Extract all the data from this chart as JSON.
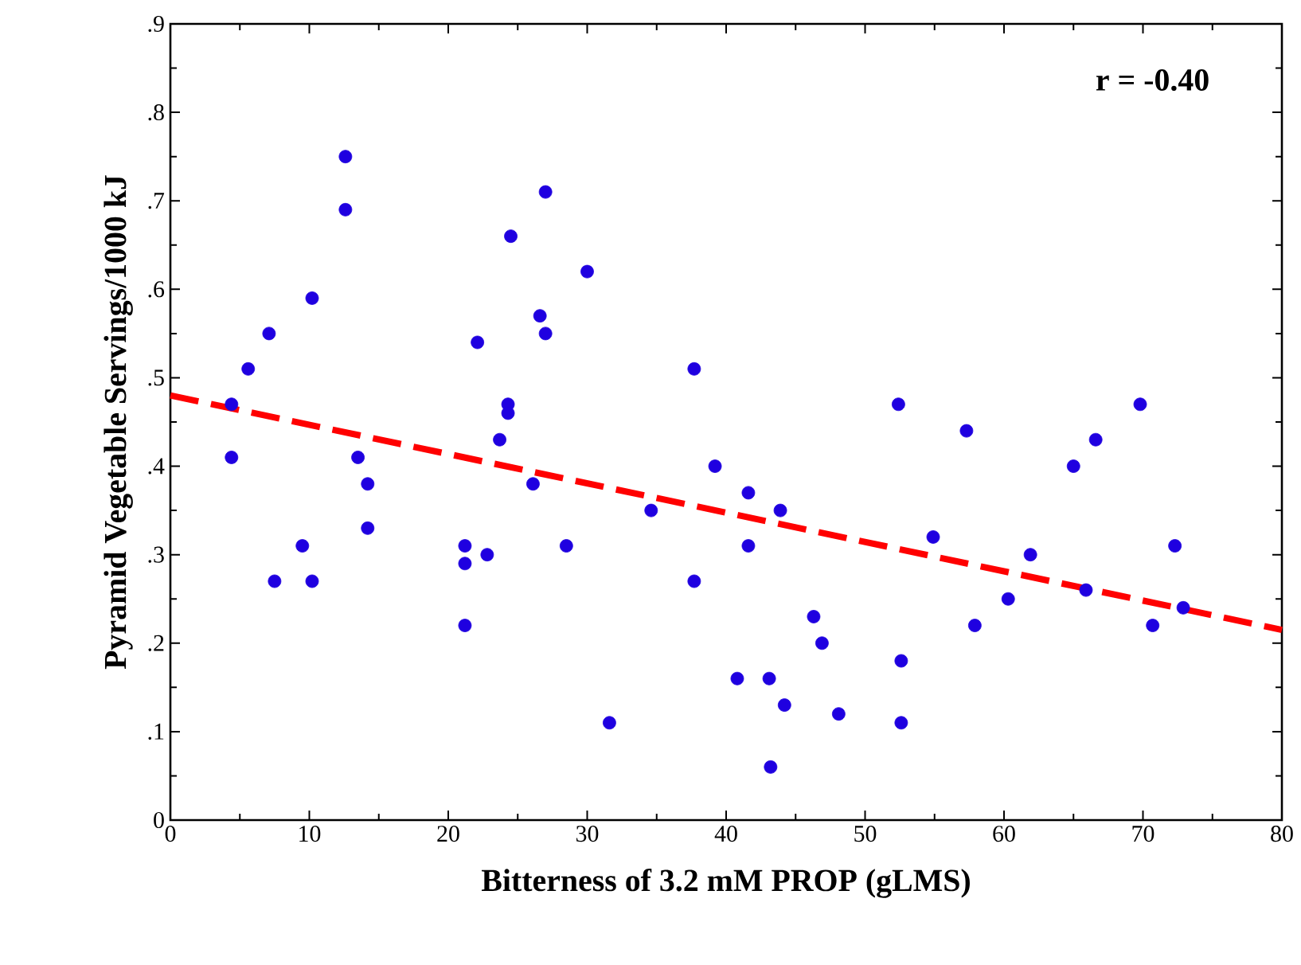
{
  "chart_data": {
    "type": "scatter",
    "xlabel": "Bitterness of 3.2 mM PROP (gLMS)",
    "ylabel": "Pyramid Vegetable Servings/1000 kJ",
    "annotations": [
      "r = -0.40"
    ],
    "xlim": [
      0,
      80
    ],
    "ylim": [
      0,
      0.9
    ],
    "xticks": [
      0,
      10,
      20,
      30,
      40,
      50,
      60,
      70,
      80
    ],
    "yticks": [
      0,
      {
        "value": 0.1,
        "label": ".1"
      },
      {
        "value": 0.2,
        "label": ".2"
      },
      {
        "value": 0.3,
        "label": ".3"
      },
      {
        "value": 0.4,
        "label": ".4"
      },
      {
        "value": 0.5,
        "label": ".5"
      },
      {
        "value": 0.6,
        "label": ".6"
      },
      {
        "value": 0.7,
        "label": ".7"
      },
      {
        "value": 0.8,
        "label": ".8"
      },
      {
        "value": 0.9,
        "label": ".9"
      }
    ],
    "grid": false,
    "series": [
      {
        "color": "#1f00e0",
        "marker": "circle",
        "x": [
          4.4,
          4.4,
          5.6,
          7.1,
          7.5,
          9.5,
          10.2,
          10.2,
          12.6,
          12.6,
          13.5,
          14.2,
          14.2,
          21.2,
          21.2,
          21.2,
          22.1,
          22.8,
          23.7,
          24.3,
          24.3,
          24.5,
          26.1,
          26.6,
          27.0,
          27.0,
          28.5,
          30.0,
          31.6,
          34.6,
          37.7,
          37.7,
          39.2,
          40.8,
          41.6,
          41.6,
          43.1,
          43.2,
          43.9,
          44.2,
          46.3,
          46.9,
          48.1,
          52.4,
          52.6,
          52.6,
          54.9,
          57.3,
          57.9,
          60.3,
          61.9,
          65.0,
          66.6,
          65.9,
          69.8,
          70.7,
          72.3,
          72.9
        ],
        "values": [
          0.47,
          0.41,
          0.51,
          0.55,
          0.27,
          0.31,
          0.59,
          0.27,
          0.75,
          0.69,
          0.41,
          0.38,
          0.33,
          0.31,
          0.29,
          0.22,
          0.54,
          0.3,
          0.43,
          0.47,
          0.46,
          0.66,
          0.38,
          0.57,
          0.71,
          0.55,
          0.31,
          0.62,
          0.11,
          0.35,
          0.51,
          0.27,
          0.4,
          0.16,
          0.37,
          0.31,
          0.16,
          0.06,
          0.35,
          0.13,
          0.23,
          0.2,
          0.12,
          0.47,
          0.18,
          0.11,
          0.32,
          0.44,
          0.22,
          0.25,
          0.3,
          0.4,
          0.43,
          0.26,
          0.47,
          0.22,
          0.31,
          0.24
        ]
      },
      {
        "type": "line",
        "color": "#ff0000",
        "marker": "none",
        "line_style": "dashed",
        "x": [
          0,
          80
        ],
        "values": [
          0.48,
          0.215
        ]
      }
    ]
  }
}
